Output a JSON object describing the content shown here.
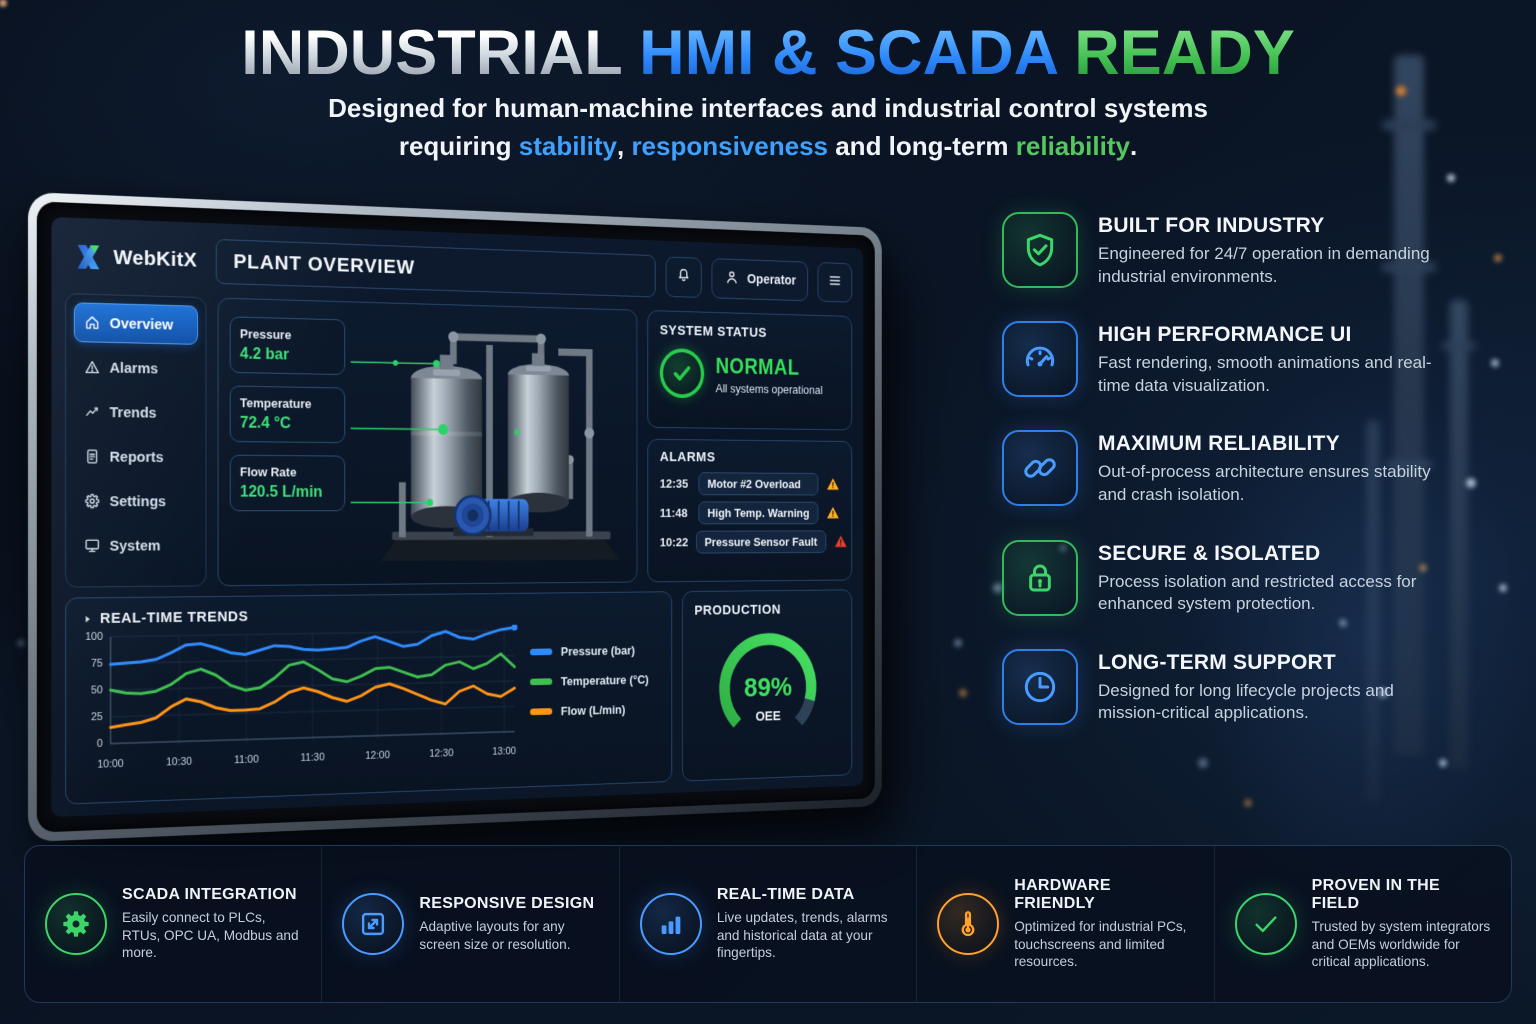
{
  "hero": {
    "title_parts": [
      {
        "text": "INDUSTRIAL ",
        "color": "silver"
      },
      {
        "text": "HMI & SCADA ",
        "color": "blue"
      },
      {
        "text": "READY",
        "color": "green"
      }
    ],
    "subtitle_line1": "Designed for human-machine interfaces and industrial control systems",
    "subtitle_line2_segments": [
      {
        "text": "requiring "
      },
      {
        "text": "stability",
        "color": "blue"
      },
      {
        "text": ", "
      },
      {
        "text": "responsiveness",
        "color": "blue"
      },
      {
        "text": " and long-term "
      },
      {
        "text": "reliability",
        "color": "green"
      },
      {
        "text": "."
      }
    ]
  },
  "hmi": {
    "brand": "WebKitX",
    "page_title": "PLANT OVERVIEW",
    "user": "Operator",
    "topbar_icons": [
      "bell-icon",
      "user-icon",
      "hamburger-icon"
    ],
    "sidebar": [
      {
        "label": "Overview",
        "icon": "home-icon",
        "active": true
      },
      {
        "label": "Alarms",
        "icon": "warning-icon",
        "active": false
      },
      {
        "label": "Trends",
        "icon": "trend-icon",
        "active": false
      },
      {
        "label": "Reports",
        "icon": "document-icon",
        "active": false
      },
      {
        "label": "Settings",
        "icon": "gear-icon",
        "active": false
      },
      {
        "label": "System",
        "icon": "monitor-icon",
        "active": false
      }
    ],
    "metrics": [
      {
        "label": "Pressure",
        "value": "4.2 bar"
      },
      {
        "label": "Temperature",
        "value": "72.4 °C"
      },
      {
        "label": "Flow Rate",
        "value": "120.5 L/min"
      }
    ],
    "system_status": {
      "title": "SYSTEM STATUS",
      "state": "NORMAL",
      "detail": "All systems operational",
      "icon": "check-circle-icon"
    },
    "alarms": {
      "title": "ALARMS",
      "rows": [
        {
          "time": "12:35",
          "message": "Motor #2 Overload",
          "severity": "warning"
        },
        {
          "time": "11:48",
          "message": "High Temp. Warning",
          "severity": "warning"
        },
        {
          "time": "10:22",
          "message": "Pressure Sensor Fault",
          "severity": "critical"
        }
      ]
    }
  },
  "chart_data": [
    {
      "type": "line",
      "title": "REAL-TIME TRENDS",
      "xlabel": "",
      "ylabel": "",
      "ylim": [
        0,
        100
      ],
      "y_ticks": [
        0,
        25,
        50,
        75,
        100
      ],
      "x_ticks": [
        "10:00",
        "10:30",
        "11:00",
        "11:30",
        "12:00",
        "12:30",
        "13:00"
      ],
      "x_tick_minutes": [
        0,
        30,
        60,
        90,
        120,
        150,
        180
      ],
      "x_total_minutes": 185,
      "grid": true,
      "legend_position": "right",
      "series": [
        {
          "name": "Pressure (bar)",
          "color": "#2f8bfd",
          "values": [
            74,
            75,
            76,
            78,
            84,
            91,
            92,
            88,
            83,
            81,
            85,
            89,
            88,
            85,
            84,
            85,
            86,
            92,
            96,
            91,
            86,
            88,
            96,
            100,
            94,
            92,
            97,
            101,
            103
          ]
        },
        {
          "name": "Temperature (°C)",
          "color": "#3fbf4f",
          "values": [
            50,
            47,
            46,
            48,
            54,
            64,
            68,
            62,
            52,
            47,
            49,
            58,
            70,
            73,
            65,
            56,
            53,
            58,
            65,
            66,
            61,
            56,
            58,
            67,
            70,
            63,
            68,
            77,
            64
          ]
        },
        {
          "name": "Flow (L/min)",
          "color": "#ff9416",
          "values": [
            15,
            17,
            19,
            23,
            33,
            40,
            37,
            31,
            28,
            28,
            29,
            35,
            44,
            48,
            44,
            38,
            34,
            39,
            47,
            50,
            45,
            39,
            33,
            29,
            41,
            46,
            38,
            35,
            43
          ]
        }
      ]
    },
    {
      "type": "pie",
      "variant": "gauge",
      "title": "PRODUCTION",
      "value_percent": 89,
      "label": "89%",
      "unit": "OEE",
      "sweep_deg": 270,
      "value_color": "#38cf54",
      "track_color": "#2e4257"
    }
  ],
  "features_right": [
    {
      "title": "BUILT FOR INDUSTRY",
      "desc": "Engineered for 24/7 operation in demanding industrial environments.",
      "icon": "shield-check-icon",
      "accent": "green"
    },
    {
      "title": "HIGH PERFORMANCE UI",
      "desc": "Fast rendering, smooth animations and real-time data visualization.",
      "icon": "speedometer-icon",
      "accent": "blue"
    },
    {
      "title": "MAXIMUM RELIABILITY",
      "desc": "Out-of-process architecture ensures stability and crash isolation.",
      "icon": "link-icon",
      "accent": "blue"
    },
    {
      "title": "SECURE & ISOLATED",
      "desc": "Process isolation and restricted access for enhanced system protection.",
      "icon": "lock-icon",
      "accent": "green"
    },
    {
      "title": "LONG-TERM SUPPORT",
      "desc": "Designed for long lifecycle projects and mission-critical applications.",
      "icon": "clock-icon",
      "accent": "blue"
    }
  ],
  "features_bottom": [
    {
      "title": "SCADA INTEGRATION",
      "desc": "Easily connect to PLCs, RTUs, OPC UA, Modbus and more.",
      "icon": "gear-solid-icon",
      "accent": "green"
    },
    {
      "title": "RESPONSIVE DESIGN",
      "desc": "Adaptive layouts for any screen size or resolution.",
      "icon": "expand-icon",
      "accent": "blue"
    },
    {
      "title": "REAL-TIME DATA",
      "desc": "Live updates, trends, alarms and historical data at your fingertips.",
      "icon": "bar-chart-icon",
      "accent": "blue"
    },
    {
      "title": "HARDWARE FRIENDLY",
      "desc": "Optimized for industrial PCs, touchscreens and limited resources.",
      "icon": "thermometer-icon",
      "accent": "orange"
    },
    {
      "title": "PROVEN IN THE FIELD",
      "desc": "Trusted by system integrators and OEMs worldwide for critical applications.",
      "icon": "check-icon",
      "accent": "green"
    }
  ],
  "colors": {
    "accent_blue": "#2f8bfd",
    "accent_green": "#3dd46a",
    "accent_orange": "#ff9416",
    "warning": "#ffb020",
    "critical": "#e8402a",
    "value_green": "#3fe07a"
  }
}
